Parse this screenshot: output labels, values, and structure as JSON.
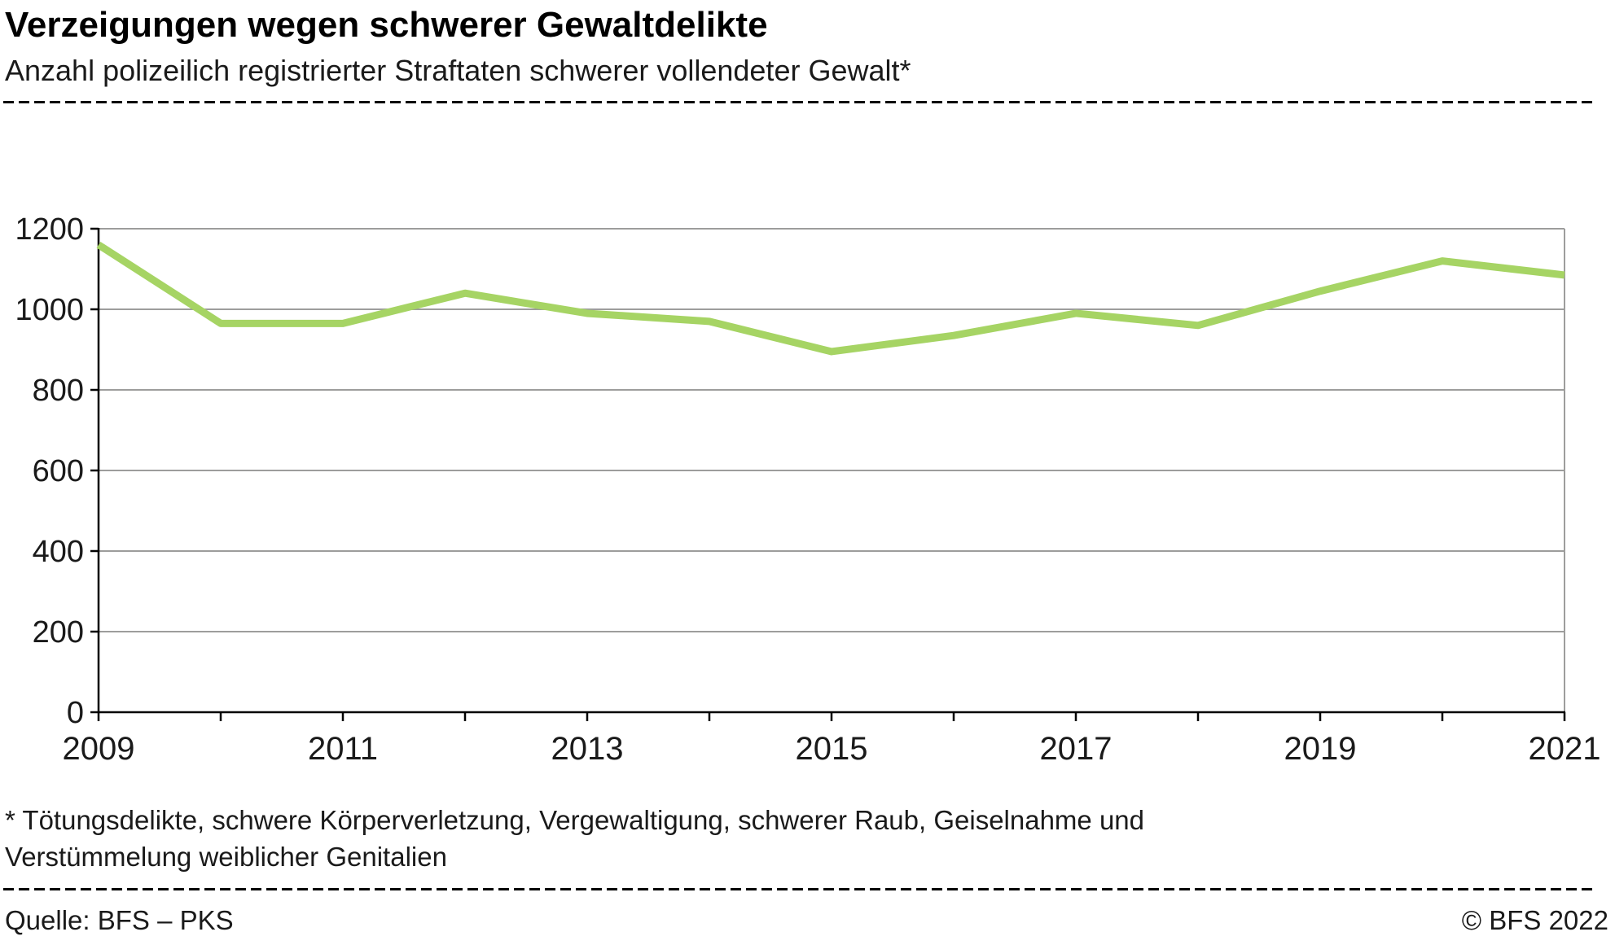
{
  "header": {
    "title": "Verzeigungen wegen schwerer Gewaltdelikte",
    "subtitle": "Anzahl polizeilich registrierter Straftaten schwerer vollendeter Gewalt*"
  },
  "footnote": {
    "line1": "* Tötungsdelikte, schwere Körperverletzung, Vergewaltigung, schwerer Raub, Geiselnahme und",
    "line2": "Verstümmelung weiblicher Genitalien"
  },
  "footer": {
    "source": "Quelle: BFS – PKS",
    "copyright": "© BFS 2022"
  },
  "chart_data": {
    "type": "line",
    "title": "Verzeigungen wegen schwerer Gewaltdelikte",
    "subtitle": "Anzahl polizeilich registrierter Straftaten schwerer vollendeter Gewalt*",
    "x": [
      2009,
      2010,
      2011,
      2012,
      2013,
      2014,
      2015,
      2016,
      2017,
      2018,
      2019,
      2020,
      2021
    ],
    "series": [
      {
        "name": "Polizeilich registrierte Straftaten schwerer vollendeter Gewalt",
        "values": [
          1160,
          965,
          965,
          1040,
          990,
          970,
          895,
          935,
          990,
          960,
          1045,
          1120,
          1085
        ]
      }
    ],
    "ylim": [
      0,
      1200
    ],
    "ytick_step": 200,
    "yticks": [
      0,
      200,
      400,
      600,
      800,
      1000,
      1200
    ],
    "xticks_labeled": [
      2009,
      2011,
      2013,
      2015,
      2017,
      2019,
      2021
    ],
    "grid": true,
    "legend_position": "none",
    "line_color": "#a6d464",
    "grid_color": "#9d9d9c",
    "axis_color": "#000000",
    "tick_label_color": "#1a1a1a"
  }
}
